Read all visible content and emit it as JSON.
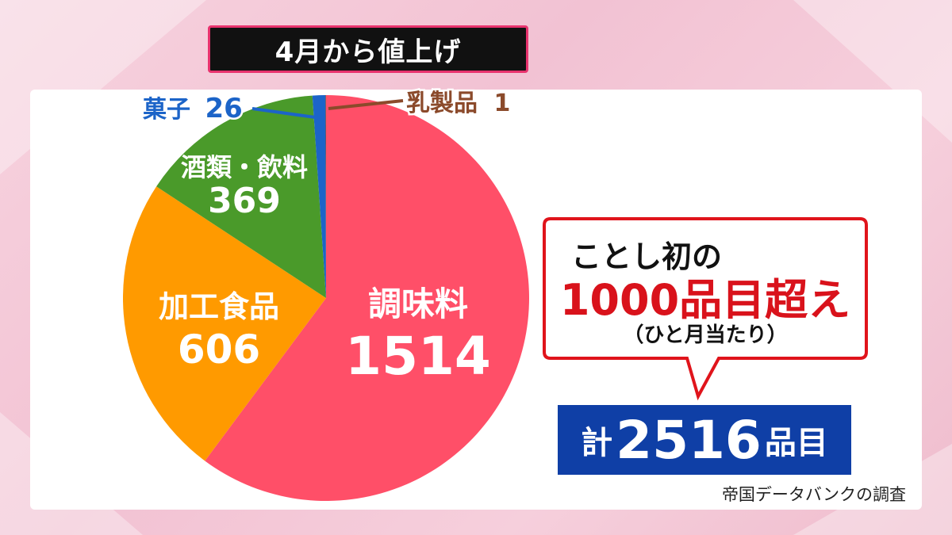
{
  "header": {
    "title": "4月から値上げ"
  },
  "chart_data": {
    "type": "pie",
    "slices": [
      {
        "name": "調味料",
        "value": 1514,
        "color": "#ff4f68"
      },
      {
        "name": "加工食品",
        "value": 606,
        "color": "#ff9a00"
      },
      {
        "name": "酒類・飲料",
        "value": 369,
        "color": "#4a9a2a"
      },
      {
        "name": "菓子",
        "value": 26,
        "color": "#1c64c8"
      },
      {
        "name": "乳製品",
        "value": 1,
        "color": "#8b4a2b"
      }
    ],
    "labels": {
      "seasoning_name": "調味料",
      "seasoning_value": "1514",
      "processed_name": "加工食品",
      "processed_value": "606",
      "drinks_name": "酒類・飲料",
      "drinks_value": "369",
      "sweets_name": "菓子",
      "sweets_value": "26",
      "dairy_name": "乳製品",
      "dairy_value": "1"
    }
  },
  "callout": {
    "line1": "ことし初の",
    "line2": "1000品目超え",
    "line3": "（ひと月当たり）"
  },
  "total": {
    "prefix": "計",
    "number": "2516",
    "suffix": "品目"
  },
  "source": "帝国データバンクの調査"
}
